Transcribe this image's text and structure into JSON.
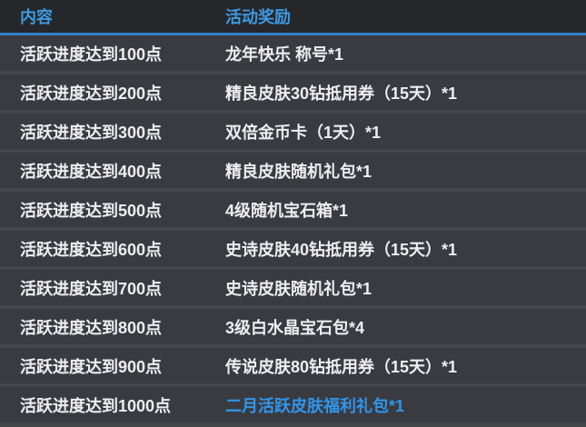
{
  "table": {
    "columns": [
      {
        "label": "内容"
      },
      {
        "label": "活动奖励"
      }
    ],
    "rows": [
      {
        "content": "活跃进度达到100点",
        "reward": "龙年快乐 称号*1",
        "highlight": false
      },
      {
        "content": "活跃进度达到200点",
        "reward": "精良皮肤30钻抵用券（15天）*1",
        "highlight": false
      },
      {
        "content": "活跃进度达到300点",
        "reward": "双倍金币卡（1天）*1",
        "highlight": false
      },
      {
        "content": "活跃进度达到400点",
        "reward": "精良皮肤随机礼包*1",
        "highlight": false
      },
      {
        "content": "活跃进度达到500点",
        "reward": "4级随机宝石箱*1",
        "highlight": false
      },
      {
        "content": "活跃进度达到600点",
        "reward": "史诗皮肤40钻抵用券（15天）*1",
        "highlight": false
      },
      {
        "content": "活跃进度达到700点",
        "reward": "史诗皮肤随机礼包*1",
        "highlight": false
      },
      {
        "content": "活跃进度达到800点",
        "reward": "3级白水晶宝石包*4",
        "highlight": false
      },
      {
        "content": "活跃进度达到900点",
        "reward": "传说皮肤80钻抵用券（15天）*1",
        "highlight": false
      },
      {
        "content": "活跃进度达到1000点",
        "reward": "二月活跃皮肤福利礼包*1",
        "highlight": true
      }
    ]
  },
  "colors": {
    "header_background": "#26272b",
    "header_text": "#3d9ae2",
    "header_divider": "#2d80cc",
    "row_background": "#3a3b41",
    "row_gap": "#45464a",
    "row_text": "#eeeef0",
    "highlight_link_text": "#2f96ec"
  }
}
